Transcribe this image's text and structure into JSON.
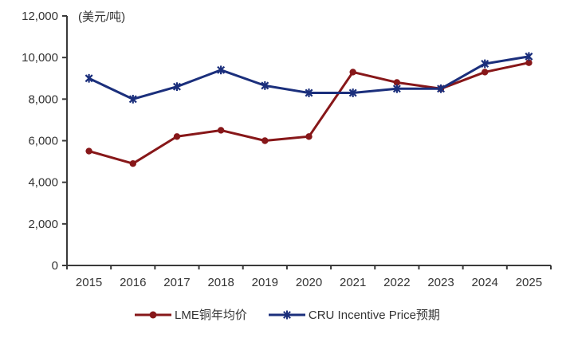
{
  "chart_data": {
    "type": "line",
    "title": "",
    "unit_label": "(美元/吨)",
    "xlabel": "",
    "ylabel": "",
    "categories": [
      "2015",
      "2016",
      "2017",
      "2018",
      "2019",
      "2020",
      "2021",
      "2022",
      "2023",
      "2024",
      "2025"
    ],
    "series": [
      {
        "name": "LME铜年均价",
        "marker": "circle",
        "color": "#871719",
        "values": [
          5500,
          4900,
          6200,
          6500,
          6000,
          6200,
          9300,
          8800,
          8500,
          9300,
          9750
        ]
      },
      {
        "name": "CRU Incentive Price预期",
        "marker": "asterisk",
        "color": "#1B2F7C",
        "values": [
          9000,
          8000,
          8600,
          9400,
          8650,
          8300,
          8300,
          8500,
          8500,
          9700,
          10050
        ]
      }
    ],
    "ylim": [
      0,
      12000
    ],
    "yticks": [
      {
        "value": 0,
        "label": "0"
      },
      {
        "value": 2000,
        "label": "2,000"
      },
      {
        "value": 4000,
        "label": "4,000"
      },
      {
        "value": 6000,
        "label": "6,000"
      },
      {
        "value": 8000,
        "label": "8,000"
      },
      {
        "value": 10000,
        "label": "10,000"
      },
      {
        "value": 12000,
        "label": "12,000"
      }
    ],
    "grid": false,
    "legend_position": "bottom",
    "axis_color": "#3a3a3a",
    "text_color": "#333333"
  }
}
